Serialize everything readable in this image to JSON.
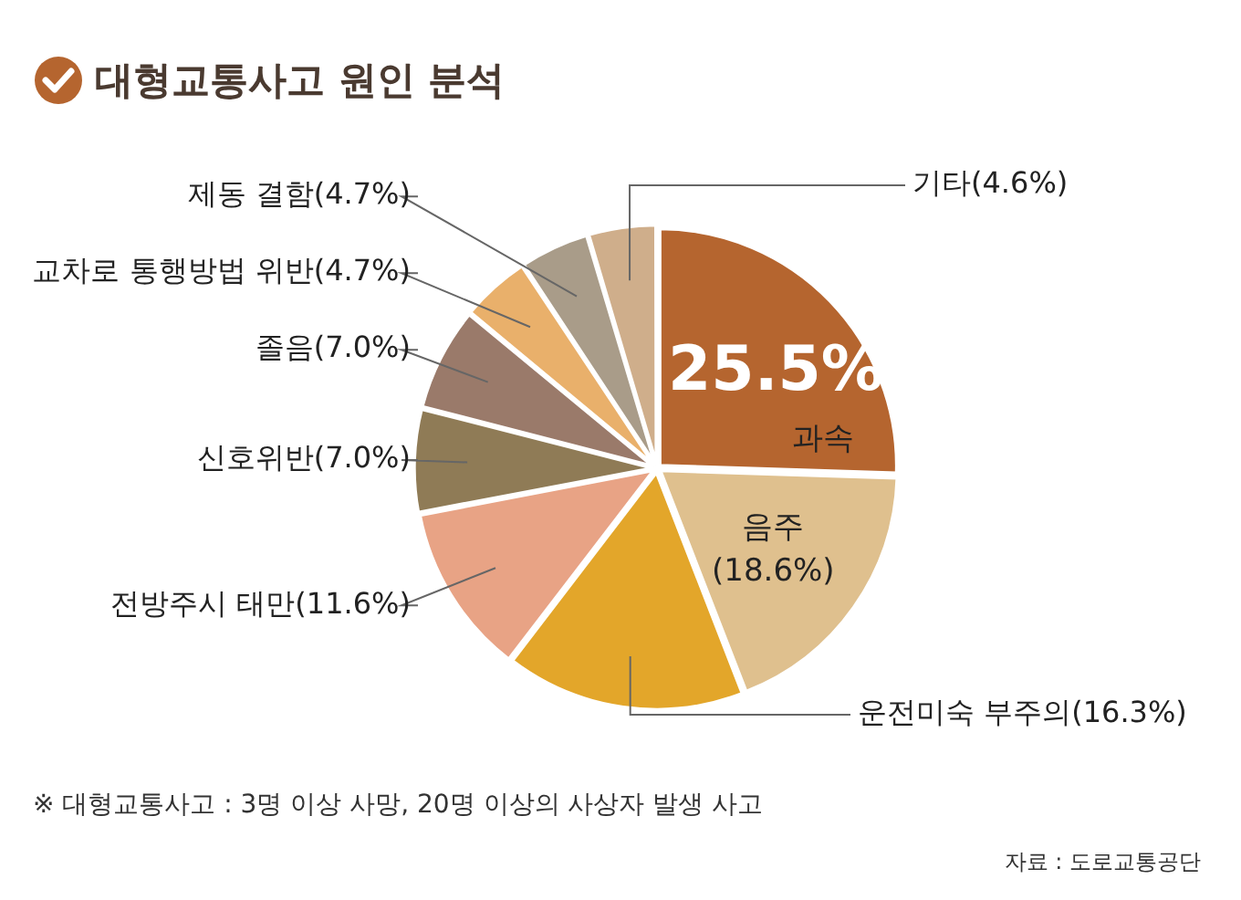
{
  "chart_data": {
    "type": "pie",
    "title": "대형교통사고 원인 분석",
    "categories": [
      "과속",
      "음주",
      "운전미숙 부주의",
      "전방주시 태만",
      "신호위반",
      "졸음",
      "교차로 통행방법 위반",
      "제동 결함",
      "기타"
    ],
    "values": [
      25.5,
      18.6,
      16.3,
      11.6,
      7.0,
      7.0,
      4.7,
      4.7,
      4.6
    ],
    "value_labels": [
      "25.5%",
      "(18.6%)",
      "(16.3%)",
      "(11.6%)",
      "(7.0%)",
      "(7.0%)",
      "(4.7%)",
      "(4.7%)",
      "(4.6%)"
    ],
    "colors": [
      "#b5652f",
      "#dfc08e",
      "#e3a62a",
      "#e8a385",
      "#8f7b56",
      "#9a7a6a",
      "#e9b06b",
      "#a99c89",
      "#cfae8b"
    ],
    "annotations": [
      "※ 대형교통사고 : 3명 이상 사망, 20명 이상의 사상자 발생 사고",
      "자료 : 도로교통공단"
    ]
  }
}
